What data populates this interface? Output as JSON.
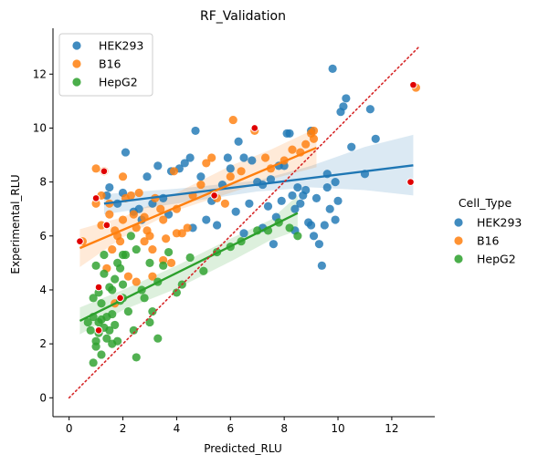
{
  "chart_data": {
    "type": "scatter",
    "title": "RF_Validation",
    "xlabel": "Predicted_RLU",
    "ylabel": "Experimental_RLU",
    "xlim": [
      -0.6,
      13.6
    ],
    "ylim": [
      -0.7,
      13.7
    ],
    "xticks": [
      0,
      2,
      4,
      6,
      8,
      10,
      12
    ],
    "yticks": [
      0,
      2,
      4,
      6,
      8,
      10,
      12
    ],
    "grid": false,
    "legend_inner": {
      "placement": "top-left",
      "entries": [
        "HEK293",
        "B16",
        "HepG2"
      ]
    },
    "legend_outer": {
      "placement": "right",
      "title": "Cell_Type",
      "entries": [
        "HEK293",
        "B16",
        "HepG2"
      ]
    },
    "identity_line": {
      "from": [
        0,
        0
      ],
      "to": [
        13,
        13
      ],
      "color": "#d62728",
      "style": "dotted"
    },
    "series": [
      {
        "name": "HEK293",
        "color": "#1f77b4",
        "fit": {
          "x": [
            1.3,
            12.8
          ],
          "y": [
            7.2,
            8.62
          ]
        },
        "band_upper": [
          [
            1.3,
            7.55
          ],
          [
            4,
            7.75
          ],
          [
            7,
            8.05
          ],
          [
            9,
            8.6
          ],
          [
            11,
            9.3
          ],
          [
            12.8,
            9.75
          ]
        ],
        "band_lower": [
          [
            12.8,
            7.5
          ],
          [
            11,
            7.7
          ],
          [
            9,
            7.8
          ],
          [
            7,
            7.65
          ],
          [
            4,
            7.2
          ],
          [
            1.3,
            6.8
          ]
        ],
        "points": [
          [
            1.4,
            7.5
          ],
          [
            1.5,
            7.8
          ],
          [
            1.8,
            7.2
          ],
          [
            2.0,
            7.6
          ],
          [
            2.1,
            9.1
          ],
          [
            2.4,
            6.9
          ],
          [
            2.6,
            7.0
          ],
          [
            2.7,
            6.6
          ],
          [
            2.9,
            8.2
          ],
          [
            3.1,
            7.2
          ],
          [
            3.3,
            8.6
          ],
          [
            3.5,
            7.4
          ],
          [
            3.7,
            6.8
          ],
          [
            3.8,
            8.4
          ],
          [
            4.1,
            8.5
          ],
          [
            4.3,
            8.7
          ],
          [
            4.5,
            8.9
          ],
          [
            4.6,
            6.3
          ],
          [
            4.7,
            9.9
          ],
          [
            4.9,
            8.2
          ],
          [
            5.1,
            6.6
          ],
          [
            5.3,
            7.3
          ],
          [
            5.5,
            6.4
          ],
          [
            5.7,
            7.9
          ],
          [
            5.9,
            8.9
          ],
          [
            6.0,
            8.5
          ],
          [
            6.2,
            6.9
          ],
          [
            6.3,
            9.5
          ],
          [
            6.5,
            8.9
          ],
          [
            6.7,
            7.2
          ],
          [
            6.8,
            8.8
          ],
          [
            7.0,
            8.0
          ],
          [
            7.2,
            6.3
          ],
          [
            7.4,
            7.1
          ],
          [
            7.5,
            8.1
          ],
          [
            7.6,
            5.7
          ],
          [
            7.7,
            6.7
          ],
          [
            7.8,
            8.6
          ],
          [
            7.9,
            7.3
          ],
          [
            8.0,
            8.6
          ],
          [
            8.1,
            9.8
          ],
          [
            8.2,
            9.8
          ],
          [
            8.3,
            7.5
          ],
          [
            8.4,
            6.2
          ],
          [
            8.5,
            7.8
          ],
          [
            8.6,
            7.2
          ],
          [
            8.7,
            7.5
          ],
          [
            8.8,
            7.7
          ],
          [
            8.9,
            6.5
          ],
          [
            9.0,
            6.4
          ],
          [
            9.1,
            6.0
          ],
          [
            9.2,
            7.4
          ],
          [
            9.3,
            5.7
          ],
          [
            9.4,
            4.9
          ],
          [
            9.5,
            6.4
          ],
          [
            9.6,
            8.3
          ],
          [
            9.7,
            7.0
          ],
          [
            9.8,
            12.2
          ],
          [
            9.9,
            8.0
          ],
          [
            10.0,
            7.3
          ],
          [
            10.1,
            10.6
          ],
          [
            10.2,
            10.8
          ],
          [
            10.3,
            11.1
          ],
          [
            10.5,
            9.3
          ],
          [
            11.0,
            8.3
          ],
          [
            11.2,
            10.7
          ],
          [
            11.4,
            9.6
          ],
          [
            9.6,
            7.8
          ],
          [
            9.9,
            6.6
          ],
          [
            9.0,
            9.9
          ],
          [
            8.4,
            7.0
          ],
          [
            7.2,
            7.9
          ],
          [
            6.5,
            6.1
          ]
        ]
      },
      {
        "name": "B16",
        "color": "#ff7f0e",
        "fit": {
          "x": [
            0.4,
            9.2
          ],
          "y": [
            5.55,
            9.27
          ]
        },
        "band_upper": [
          [
            0.4,
            6.25
          ],
          [
            2,
            6.7
          ],
          [
            4,
            7.6
          ],
          [
            6,
            8.6
          ],
          [
            7.5,
            9.2
          ],
          [
            9.2,
            10.0
          ]
        ],
        "band_lower": [
          [
            9.2,
            8.55
          ],
          [
            7.5,
            8.1
          ],
          [
            6,
            7.6
          ],
          [
            4,
            6.95
          ],
          [
            2,
            5.95
          ],
          [
            0.4,
            4.85
          ]
        ],
        "points": [
          [
            0.5,
            5.8
          ],
          [
            1.0,
            8.5
          ],
          [
            1.0,
            7.2
          ],
          [
            1.2,
            7.5
          ],
          [
            1.3,
            8.4
          ],
          [
            1.5,
            6.8
          ],
          [
            1.6,
            5.5
          ],
          [
            1.7,
            6.2
          ],
          [
            1.8,
            6.0
          ],
          [
            1.9,
            5.8
          ],
          [
            2.0,
            8.2
          ],
          [
            2.1,
            7.4
          ],
          [
            2.3,
            7.5
          ],
          [
            2.5,
            6.3
          ],
          [
            2.6,
            7.6
          ],
          [
            2.8,
            6.7
          ],
          [
            2.9,
            6.2
          ],
          [
            3.0,
            6.0
          ],
          [
            3.1,
            5.5
          ],
          [
            3.2,
            7.4
          ],
          [
            3.4,
            7.0
          ],
          [
            3.5,
            6.6
          ],
          [
            3.6,
            5.9
          ],
          [
            3.9,
            8.4
          ],
          [
            4.0,
            6.1
          ],
          [
            4.2,
            6.1
          ],
          [
            4.4,
            6.3
          ],
          [
            4.6,
            7.5
          ],
          [
            4.9,
            7.9
          ],
          [
            5.1,
            8.7
          ],
          [
            5.3,
            8.9
          ],
          [
            5.5,
            7.4
          ],
          [
            5.8,
            7.2
          ],
          [
            6.0,
            8.2
          ],
          [
            6.1,
            10.3
          ],
          [
            6.4,
            8.4
          ],
          [
            6.9,
            9.9
          ],
          [
            7.3,
            8.9
          ],
          [
            7.5,
            8.5
          ],
          [
            8.0,
            8.8
          ],
          [
            8.3,
            9.2
          ],
          [
            8.6,
            9.1
          ],
          [
            8.8,
            9.4
          ],
          [
            9.0,
            9.8
          ],
          [
            9.1,
            9.9
          ],
          [
            9.1,
            9.6
          ],
          [
            12.9,
            11.5
          ],
          [
            1.4,
            4.8
          ],
          [
            1.7,
            3.5
          ],
          [
            2.2,
            4.5
          ],
          [
            2.5,
            4.3
          ],
          [
            3.1,
            4.5
          ],
          [
            3.5,
            5.1
          ],
          [
            2.8,
            5.8
          ],
          [
            1.2,
            6.4
          ],
          [
            2.0,
            6.6
          ],
          [
            4.0,
            7.0
          ],
          [
            3.8,
            5.0
          ],
          [
            1.5,
            7.2
          ],
          [
            2.4,
            6.8
          ]
        ]
      },
      {
        "name": "HepG2",
        "color": "#2ca02c",
        "fit": {
          "x": [
            0.4,
            8.5
          ],
          "y": [
            2.85,
            6.85
          ]
        },
        "band_upper": [
          [
            0.4,
            3.35
          ],
          [
            2,
            4.0
          ],
          [
            4,
            4.9
          ],
          [
            6,
            5.9
          ],
          [
            7.5,
            6.6
          ],
          [
            8.5,
            7.5
          ]
        ],
        "band_lower": [
          [
            8.5,
            6.2
          ],
          [
            7.5,
            5.85
          ],
          [
            6,
            5.05
          ],
          [
            4,
            4.05
          ],
          [
            2,
            3.25
          ],
          [
            0.4,
            2.35
          ]
        ],
        "points": [
          [
            0.8,
            2.5
          ],
          [
            0.9,
            3.0
          ],
          [
            0.9,
            1.3
          ],
          [
            1.0,
            2.1
          ],
          [
            1.0,
            1.9
          ],
          [
            1.0,
            4.9
          ],
          [
            1.1,
            2.4
          ],
          [
            1.1,
            2.8
          ],
          [
            1.1,
            3.9
          ],
          [
            1.2,
            2.9
          ],
          [
            1.2,
            1.6
          ],
          [
            1.3,
            4.6
          ],
          [
            1.3,
            5.3
          ],
          [
            1.4,
            2.2
          ],
          [
            1.4,
            3.0
          ],
          [
            1.5,
            4.1
          ],
          [
            1.5,
            2.5
          ],
          [
            1.6,
            4.0
          ],
          [
            1.6,
            2.0
          ],
          [
            1.7,
            4.4
          ],
          [
            1.8,
            5.0
          ],
          [
            1.8,
            2.1
          ],
          [
            1.9,
            3.6
          ],
          [
            1.9,
            4.8
          ],
          [
            2.0,
            5.3
          ],
          [
            2.0,
            3.7
          ],
          [
            2.1,
            5.3
          ],
          [
            2.2,
            3.2
          ],
          [
            2.3,
            6.0
          ],
          [
            2.4,
            2.5
          ],
          [
            2.5,
            5.5
          ],
          [
            2.5,
            1.5
          ],
          [
            2.7,
            4.0
          ],
          [
            2.8,
            3.7
          ],
          [
            3.0,
            2.8
          ],
          [
            3.0,
            5.0
          ],
          [
            3.1,
            3.2
          ],
          [
            3.3,
            2.2
          ],
          [
            3.3,
            4.3
          ],
          [
            3.5,
            4.9
          ],
          [
            3.7,
            5.4
          ],
          [
            4.0,
            3.9
          ],
          [
            4.2,
            4.2
          ],
          [
            4.5,
            5.2
          ],
          [
            5.0,
            4.7
          ],
          [
            5.5,
            5.4
          ],
          [
            6.0,
            5.6
          ],
          [
            6.4,
            5.8
          ],
          [
            7.0,
            6.2
          ],
          [
            7.4,
            6.2
          ],
          [
            7.8,
            6.5
          ],
          [
            8.2,
            6.3
          ],
          [
            8.5,
            6.0
          ],
          [
            0.7,
            2.8
          ],
          [
            1.2,
            3.5
          ],
          [
            1.6,
            3.1
          ],
          [
            2.0,
            4.2
          ],
          [
            0.9,
            3.7
          ],
          [
            1.3,
            2.6
          ],
          [
            1.7,
            2.7
          ]
        ]
      }
    ],
    "highlighted_points": {
      "color": "#e00000",
      "points": [
        [
          0.4,
          5.8
        ],
        [
          1.0,
          7.4
        ],
        [
          1.3,
          8.4
        ],
        [
          1.4,
          6.4
        ],
        [
          1.1,
          4.1
        ],
        [
          1.1,
          2.5
        ],
        [
          1.9,
          3.7
        ],
        [
          5.4,
          7.5
        ],
        [
          6.9,
          10.0
        ],
        [
          12.7,
          8.0
        ],
        [
          12.8,
          11.6
        ]
      ]
    }
  }
}
